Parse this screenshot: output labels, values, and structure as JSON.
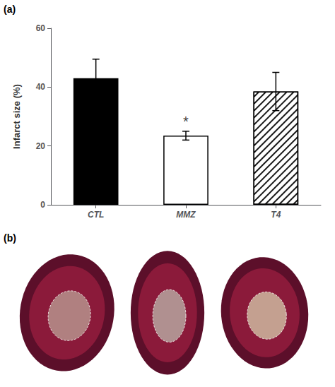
{
  "chart_data": {
    "type": "bar",
    "ylabel": "Infarct size (%)",
    "categories": [
      "CTL",
      "MMZ",
      "T4"
    ],
    "values": [
      43.0,
      23.5,
      38.5
    ],
    "errors_upper": [
      6.5,
      1.5,
      6.5
    ],
    "errors_lower": [
      6.5,
      1.5,
      6.5
    ],
    "colors": [
      "black",
      "white",
      "white"
    ],
    "ylim": [
      0,
      60
    ],
    "yticks": [
      0,
      20,
      40,
      60
    ],
    "grid": false,
    "annotations": [
      {
        "text": "(a)"
      },
      {
        "text": "(b)"
      },
      {
        "text": "*",
        "category": "MMZ"
      }
    ]
  }
}
